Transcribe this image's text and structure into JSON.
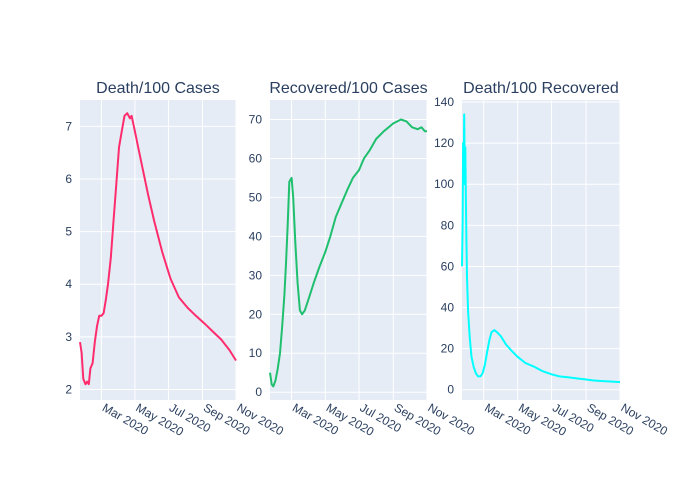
{
  "colors": {
    "plot_bg": "#e5ecf6",
    "grid": "#ffffff",
    "text": "#2a3f5f"
  },
  "chart_data": [
    {
      "type": "line",
      "title": "Death/100 Cases",
      "x_axis": {
        "ticks": [
          "Mar 2020",
          "May 2020",
          "Jul 2020",
          "Sep 2020",
          "Nov 2020"
        ],
        "range": [
          "2020-01-22",
          "2020-11-01"
        ]
      },
      "y_axis": {
        "range": [
          1.8,
          7.5
        ],
        "ticks": [
          2,
          3,
          4,
          5,
          6,
          7
        ]
      },
      "series": [
        {
          "color": "#ff2c6d",
          "x": [
            "2020-01-22",
            "2020-01-25",
            "2020-01-28",
            "2020-02-01",
            "2020-02-04",
            "2020-02-07",
            "2020-02-10",
            "2020-02-14",
            "2020-02-18",
            "2020-02-22",
            "2020-02-26",
            "2020-03-01",
            "2020-03-05",
            "2020-03-09",
            "2020-03-13",
            "2020-03-18",
            "2020-03-23",
            "2020-03-28",
            "2020-04-02",
            "2020-04-07",
            "2020-04-12",
            "2020-04-17",
            "2020-04-22",
            "2020-04-25",
            "2020-04-28",
            "2020-05-02",
            "2020-05-07",
            "2020-05-15",
            "2020-05-25",
            "2020-06-05",
            "2020-06-20",
            "2020-07-05",
            "2020-07-20",
            "2020-08-05",
            "2020-08-20",
            "2020-09-05",
            "2020-09-20",
            "2020-10-05",
            "2020-10-20",
            "2020-11-01"
          ],
          "y": [
            2.9,
            2.7,
            2.2,
            2.1,
            2.15,
            2.1,
            2.4,
            2.5,
            2.9,
            3.2,
            3.4,
            3.4,
            3.45,
            3.7,
            4.0,
            4.5,
            5.2,
            5.9,
            6.6,
            6.9,
            7.2,
            7.25,
            7.15,
            7.2,
            7.05,
            6.85,
            6.6,
            6.2,
            5.7,
            5.2,
            4.6,
            4.1,
            3.75,
            3.55,
            3.4,
            3.25,
            3.1,
            2.95,
            2.75,
            2.55
          ]
        }
      ]
    },
    {
      "type": "line",
      "title": "Recovered/100 Cases",
      "x_axis": {
        "ticks": [
          "Mar 2020",
          "May 2020",
          "Jul 2020",
          "Sep 2020",
          "Nov 2020"
        ],
        "range": [
          "2020-01-22",
          "2020-11-01"
        ]
      },
      "y_axis": {
        "range": [
          -2,
          75
        ],
        "ticks": [
          0,
          10,
          20,
          30,
          40,
          50,
          60,
          70
        ]
      },
      "series": [
        {
          "color": "#1fbf6e",
          "x": [
            "2020-01-22",
            "2020-01-25",
            "2020-01-28",
            "2020-02-01",
            "2020-02-05",
            "2020-02-09",
            "2020-02-13",
            "2020-02-17",
            "2020-02-20",
            "2020-02-23",
            "2020-02-26",
            "2020-03-01",
            "2020-03-04",
            "2020-03-08",
            "2020-03-12",
            "2020-03-16",
            "2020-03-20",
            "2020-03-25",
            "2020-04-01",
            "2020-04-10",
            "2020-04-20",
            "2020-05-01",
            "2020-05-10",
            "2020-05-20",
            "2020-06-01",
            "2020-06-10",
            "2020-06-20",
            "2020-07-01",
            "2020-07-10",
            "2020-07-20",
            "2020-08-01",
            "2020-08-15",
            "2020-09-01",
            "2020-09-15",
            "2020-09-25",
            "2020-10-05",
            "2020-10-15",
            "2020-10-22",
            "2020-10-28",
            "2020-11-01"
          ],
          "y": [
            5,
            2,
            1.5,
            3,
            6,
            10,
            17,
            25,
            33,
            43,
            54,
            55,
            50,
            38,
            28,
            21,
            20,
            21,
            24,
            28,
            32,
            36,
            40,
            45,
            49,
            52,
            55,
            57,
            60,
            62,
            65,
            67,
            69,
            70,
            69.5,
            68,
            67.5,
            68,
            67,
            67
          ]
        }
      ]
    },
    {
      "type": "line",
      "title": "Death/100 Recovered",
      "x_axis": {
        "ticks": [
          "Mar 2020",
          "May 2020",
          "Jul 2020",
          "Sep 2020",
          "Nov 2020"
        ],
        "range": [
          "2020-01-22",
          "2020-11-01"
        ]
      },
      "y_axis": {
        "range": [
          -5,
          141
        ],
        "ticks": [
          0,
          20,
          40,
          60,
          80,
          100,
          120,
          140
        ]
      },
      "series": [
        {
          "color": "#00ffff",
          "x": [
            "2020-01-22",
            "2020-01-23",
            "2020-01-24",
            "2020-01-25",
            "2020-01-26",
            "2020-01-27",
            "2020-01-28",
            "2020-01-29",
            "2020-01-30",
            "2020-01-31",
            "2020-02-02",
            "2020-02-05",
            "2020-02-08",
            "2020-02-12",
            "2020-02-16",
            "2020-02-20",
            "2020-02-24",
            "2020-02-28",
            "2020-03-03",
            "2020-03-07",
            "2020-03-11",
            "2020-03-15",
            "2020-03-20",
            "2020-03-25",
            "2020-04-01",
            "2020-04-10",
            "2020-04-20",
            "2020-05-01",
            "2020-05-15",
            "2020-06-01",
            "2020-06-15",
            "2020-07-01",
            "2020-07-15",
            "2020-08-01",
            "2020-08-15",
            "2020-09-01",
            "2020-09-15",
            "2020-10-01",
            "2020-10-15",
            "2020-11-01"
          ],
          "y": [
            60,
            80,
            120,
            105,
            134,
            100,
            118,
            92,
            70,
            55,
            38,
            25,
            16,
            11,
            8,
            6.5,
            6.5,
            8,
            12,
            18,
            24,
            28,
            29,
            28,
            26,
            22,
            19,
            16,
            13,
            11,
            9,
            7.5,
            6.5,
            6,
            5.5,
            5,
            4.5,
            4.2,
            4,
            3.7
          ]
        }
      ]
    }
  ]
}
